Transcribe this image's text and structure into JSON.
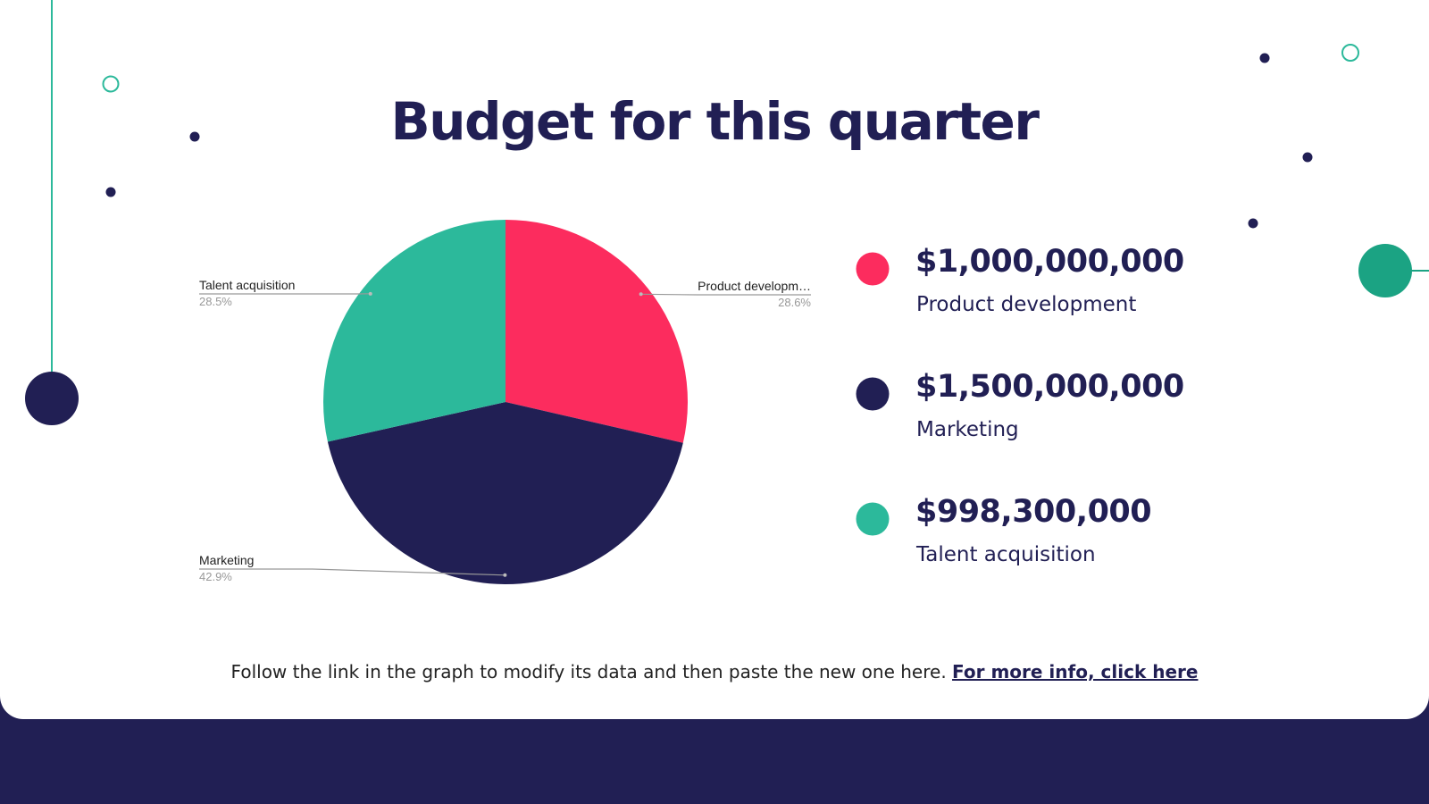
{
  "chart_data": {
    "type": "pie",
    "title": "Budget for this quarter",
    "categories": [
      "Product developm…",
      "Marketing",
      "Talent acquisition"
    ],
    "values": [
      28.6,
      42.9,
      28.5
    ],
    "value_labels": [
      "28.6%",
      "42.9%",
      "28.5%"
    ],
    "colors": [
      "#fc2c5e",
      "#211f54",
      "#2cb99b"
    ]
  },
  "legend": [
    {
      "amount": "$1,000,000,000",
      "label": "Product development"
    },
    {
      "amount": "$1,500,000,000",
      "label": "Marketing"
    },
    {
      "amount": "$998,300,000",
      "label": "Talent acquisition"
    }
  ],
  "footer": {
    "text": "Follow the link in the graph to modify its data and then paste the new one here.",
    "link": "For more info, click here"
  }
}
